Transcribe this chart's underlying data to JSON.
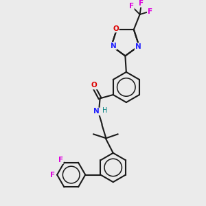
{
  "bg_color": "#ebebeb",
  "bond_color": "#1a1a1a",
  "N_color": "#2020ff",
  "O_color": "#dd0000",
  "F_color": "#dd00dd",
  "H_color": "#008080",
  "lw": 1.5,
  "figsize": [
    3.0,
    3.0
  ],
  "dpi": 100,
  "xlim": [
    0,
    10
  ],
  "ylim": [
    0,
    10
  ]
}
